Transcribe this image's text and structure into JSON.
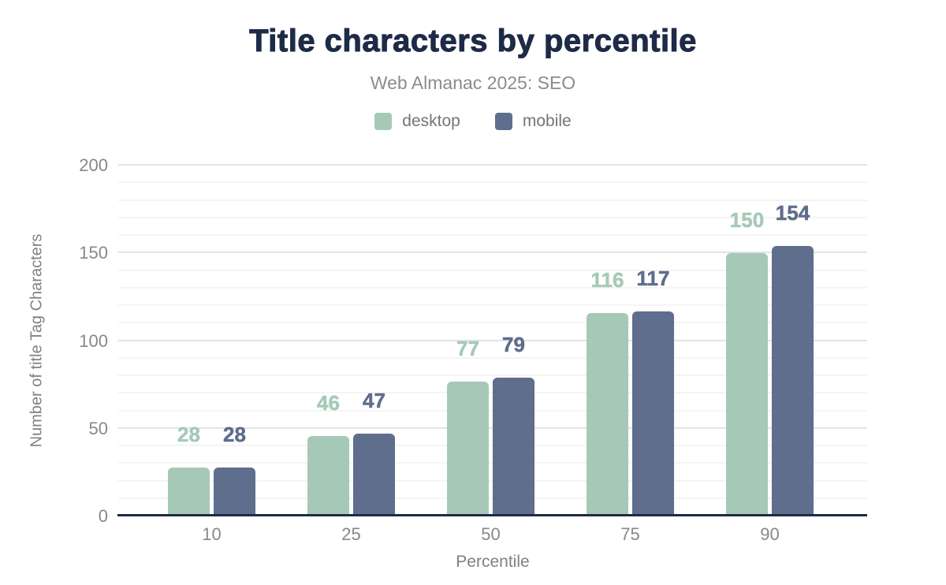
{
  "chart_data": {
    "type": "bar",
    "title": "Title characters by percentile",
    "subtitle": "Web Almanac 2025: SEO",
    "categories": [
      "10",
      "25",
      "50",
      "75",
      "90"
    ],
    "series": [
      {
        "name": "desktop",
        "color": "#a6c9b7",
        "values": [
          28,
          46,
          77,
          116,
          150
        ]
      },
      {
        "name": "mobile",
        "color": "#5e6e8c",
        "values": [
          28,
          47,
          79,
          117,
          154
        ]
      }
    ],
    "xlabel": "Percentile",
    "ylabel": "Number of title Tag Characters",
    "ylim": [
      0,
      200
    ],
    "ytick_step": 50,
    "minor_step": 10,
    "ytick_labels": [
      "0",
      "50",
      "100",
      "150",
      "200"
    ],
    "grid": true,
    "legend_position": "top",
    "data_labels_shown": true
  },
  "colors": {
    "background": "#ffffff",
    "title": "#1e2b47",
    "subtitle": "#8c8c8c",
    "legend_text": "#757575",
    "tick_text": "#888888",
    "axis_title_text": "#808080",
    "axis_line": "#1e2b47",
    "grid_major": "#e3e3e3",
    "grid_minor": "#f4f4f4"
  }
}
